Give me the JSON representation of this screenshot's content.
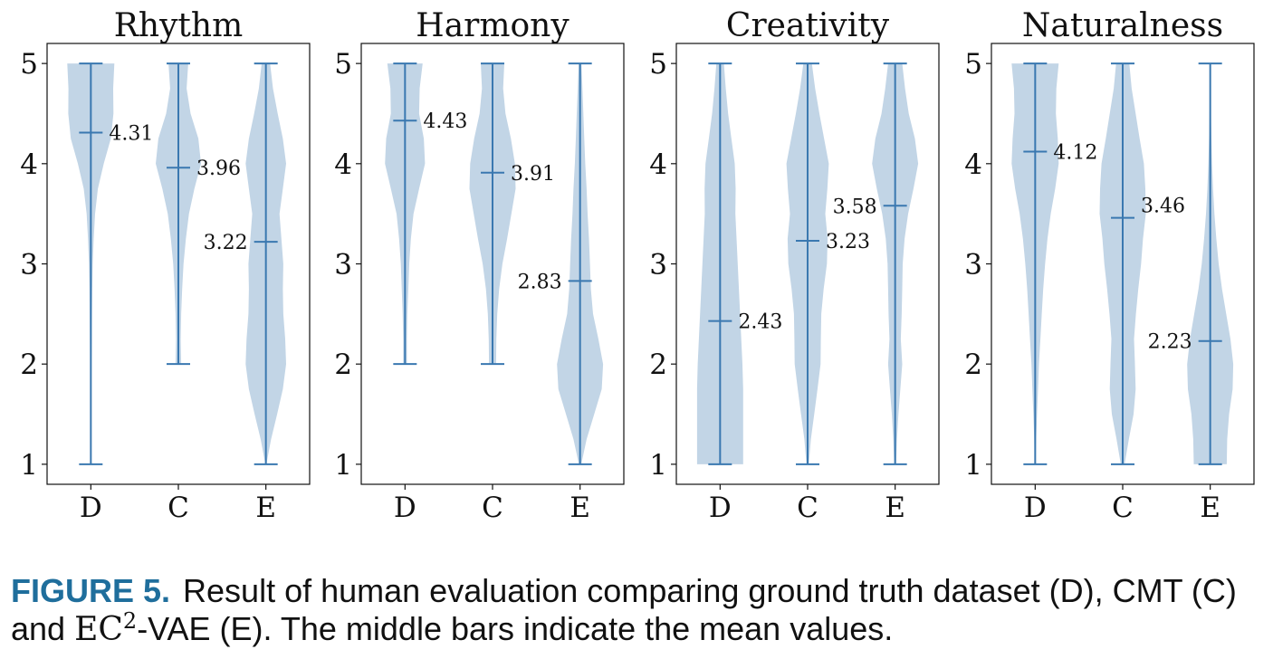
{
  "chart_data": [
    {
      "type": "violin",
      "title": "Rhythm",
      "categories": [
        "D",
        "C",
        "E"
      ],
      "ylim": [
        0.8,
        5.2
      ],
      "yticks": [
        1,
        2,
        3,
        4,
        5
      ],
      "series": [
        {
          "category": "D",
          "min": 1,
          "max": 5,
          "mean": 4.31,
          "mean_label": "4.31"
        },
        {
          "category": "C",
          "min": 2,
          "max": 5,
          "mean": 3.96,
          "mean_label": "3.96"
        },
        {
          "category": "E",
          "min": 1,
          "max": 5,
          "mean": 3.22,
          "mean_label": "3.22"
        }
      ]
    },
    {
      "type": "violin",
      "title": "Harmony",
      "categories": [
        "D",
        "C",
        "E"
      ],
      "ylim": [
        0.8,
        5.2
      ],
      "yticks": [
        1,
        2,
        3,
        4,
        5
      ],
      "series": [
        {
          "category": "D",
          "min": 2,
          "max": 5,
          "mean": 4.43,
          "mean_label": "4.43"
        },
        {
          "category": "C",
          "min": 2,
          "max": 5,
          "mean": 3.91,
          "mean_label": "3.91"
        },
        {
          "category": "E",
          "min": 1,
          "max": 5,
          "mean": 2.83,
          "mean_label": "2.83"
        }
      ]
    },
    {
      "type": "violin",
      "title": "Creativity",
      "categories": [
        "D",
        "C",
        "E"
      ],
      "ylim": [
        0.8,
        5.2
      ],
      "yticks": [
        1,
        2,
        3,
        4,
        5
      ],
      "series": [
        {
          "category": "D",
          "min": 1,
          "max": 5,
          "mean": 2.43,
          "mean_label": "2.43"
        },
        {
          "category": "C",
          "min": 1,
          "max": 5,
          "mean": 3.23,
          "mean_label": "3.23"
        },
        {
          "category": "E",
          "min": 1,
          "max": 5,
          "mean": 3.58,
          "mean_label": "3.58"
        }
      ]
    },
    {
      "type": "violin",
      "title": "Naturalness",
      "categories": [
        "D",
        "C",
        "E"
      ],
      "ylim": [
        0.8,
        5.2
      ],
      "yticks": [
        1,
        2,
        3,
        4,
        5
      ],
      "series": [
        {
          "category": "D",
          "min": 1,
          "max": 5,
          "mean": 4.12,
          "mean_label": "4.12"
        },
        {
          "category": "C",
          "min": 1,
          "max": 5,
          "mean": 3.46,
          "mean_label": "3.46"
        },
        {
          "category": "E",
          "min": 1,
          "max": 5,
          "mean": 2.23,
          "mean_label": "2.23"
        }
      ]
    }
  ],
  "caption": {
    "label": "FIGURE 5.",
    "text_part1": "Result of human evaluation comparing ground truth dataset (D), CMT (C) and ",
    "ec": "EC",
    "superscript": "2",
    "text_part2": "-VAE (E). The middle bars indicate the mean values."
  },
  "colors": {
    "violin_fill": "#c2d5e6",
    "line": "#3a78b0",
    "caption_label": "#1f6e9c"
  }
}
